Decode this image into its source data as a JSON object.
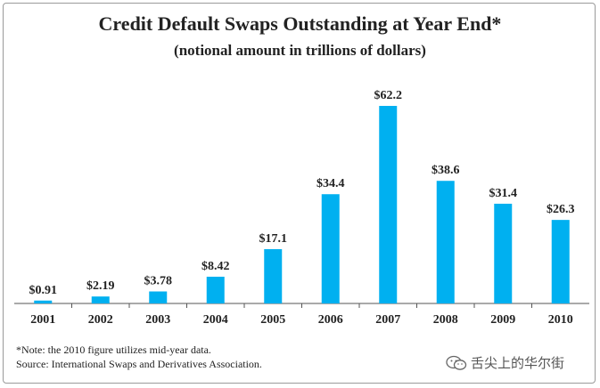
{
  "chart_data": {
    "type": "bar",
    "title": "Credit Default Swaps Outstanding at Year End*",
    "subtitle": "(notional amount in trillions of dollars)",
    "categories": [
      "2001",
      "2002",
      "2003",
      "2004",
      "2005",
      "2006",
      "2007",
      "2008",
      "2009",
      "2010"
    ],
    "values": [
      0.91,
      2.19,
      3.78,
      8.42,
      17.1,
      34.4,
      62.2,
      38.6,
      31.4,
      26.3
    ],
    "value_labels": [
      "$0.91",
      "$2.19",
      "$3.78",
      "$8.42",
      "$17.1",
      "$34.4",
      "$62.2",
      "$38.6",
      "$31.4",
      "$26.3"
    ],
    "xlabel": "",
    "ylabel": "",
    "ylim": [
      0,
      62.2
    ],
    "grid": false,
    "bar_color": "#00b0f0"
  },
  "footer": {
    "note": "*Note: the 2010 figure utilizes mid-year data.",
    "source": "Source: International Swaps and Derivatives Association."
  },
  "watermark": {
    "icon": "wechat-icon",
    "text": "舌尖上的华尔街"
  }
}
